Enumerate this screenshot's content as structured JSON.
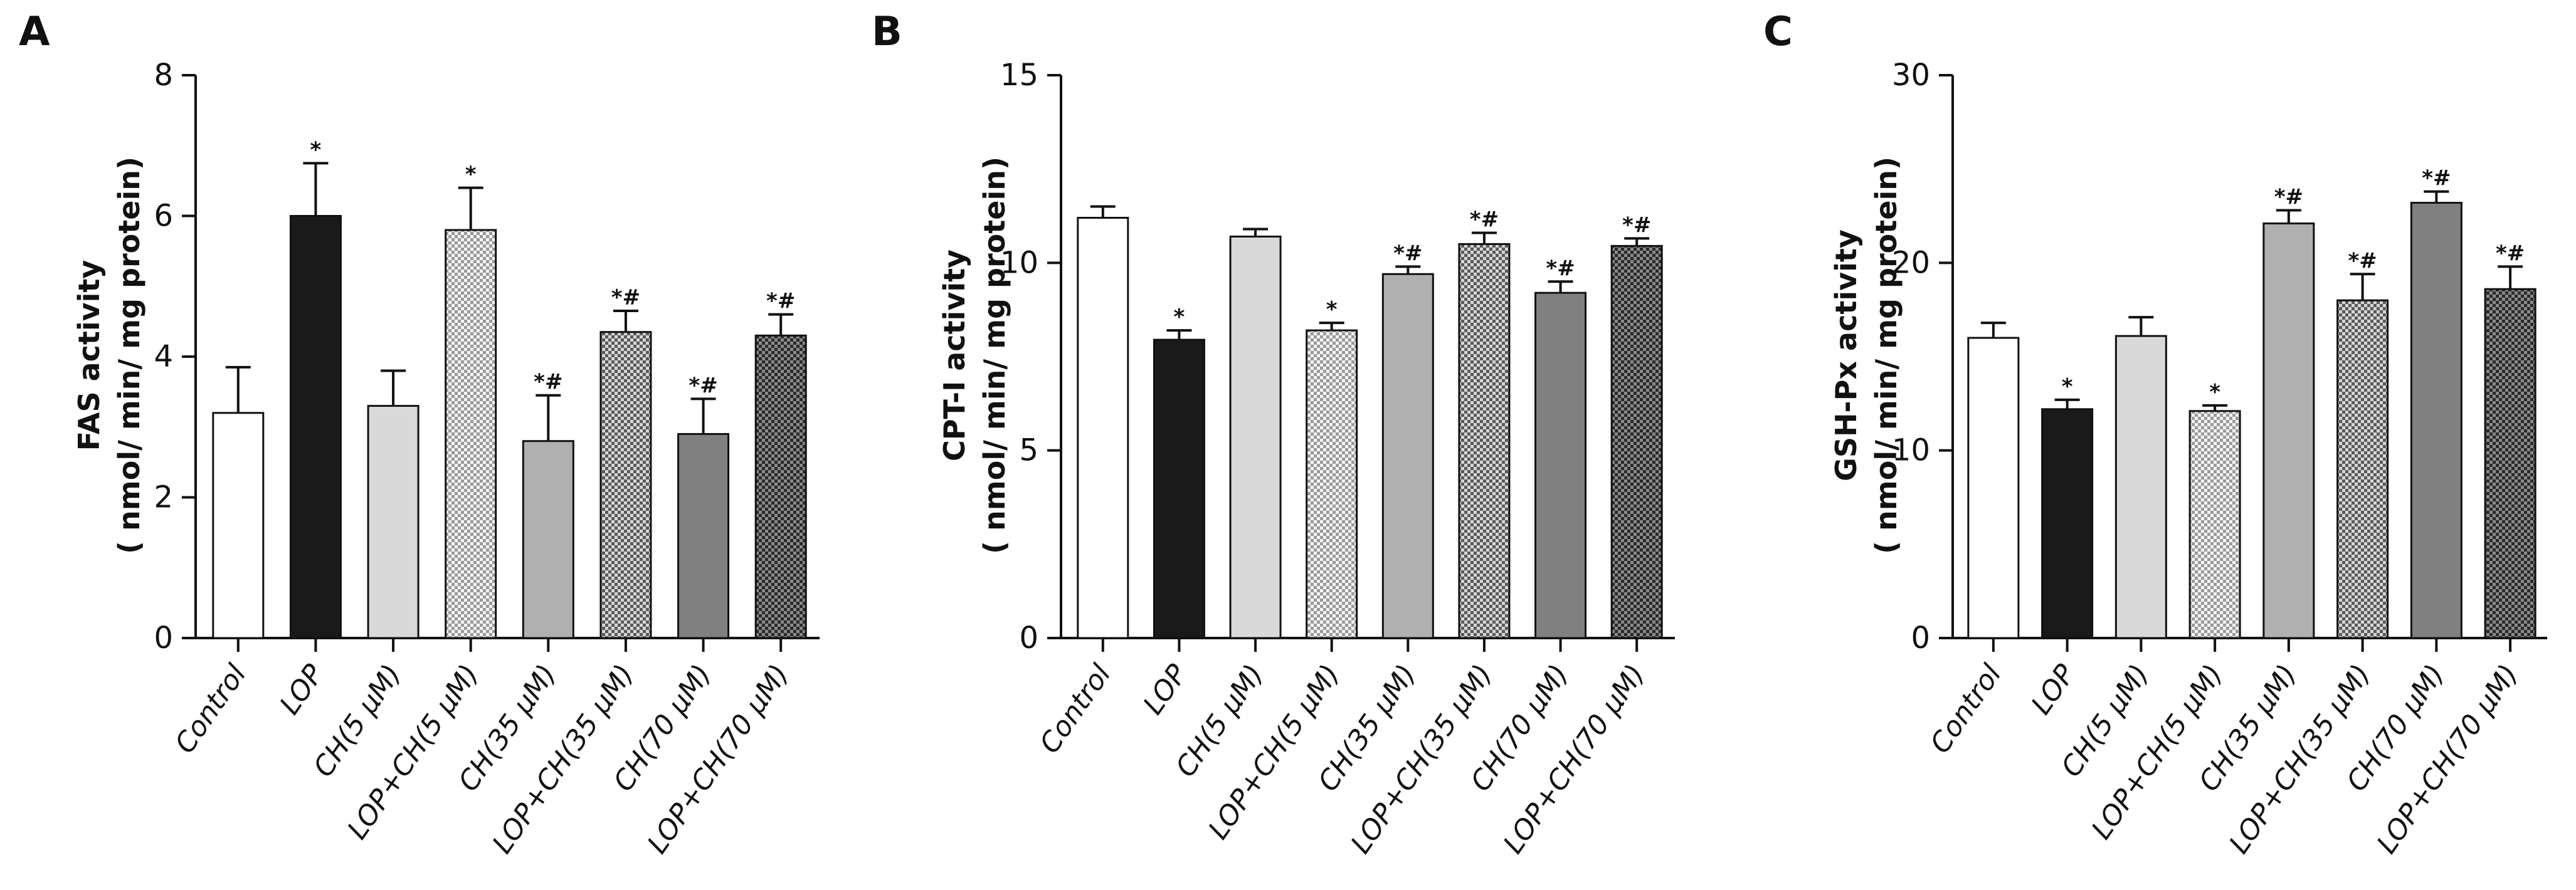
{
  "chart_data": [
    {
      "panel": "A",
      "type": "bar",
      "ylabel_line1": "FAS activity",
      "ylabel_line2": "( nmol/ min/ mg protein)",
      "ylim": [
        0,
        8
      ],
      "yticks": [
        "0",
        "2",
        "4",
        "6",
        "8"
      ],
      "categories": [
        "Control",
        "LOP",
        "CH(5 μM)",
        "LOP+CH(5 μM)",
        "CH(35 μM)",
        "LOP+CH(35 μM)",
        "CH(70 μM)",
        "LOP+CH(70 μM)"
      ],
      "values": [
        3.2,
        6.0,
        3.3,
        5.8,
        2.8,
        4.35,
        2.9,
        4.3
      ],
      "errors": [
        0.65,
        0.75,
        0.5,
        0.6,
        0.65,
        0.3,
        0.5,
        0.3
      ],
      "significance": [
        "",
        "*",
        "",
        "*",
        "*#",
        "*#",
        "*#",
        "*#"
      ]
    },
    {
      "panel": "B",
      "type": "bar",
      "ylabel_line1": "CPT-I activity",
      "ylabel_line2": "( nmol/ min/ mg protein)",
      "ylim": [
        0,
        15
      ],
      "yticks": [
        "0",
        "5",
        "10",
        "15"
      ],
      "categories": [
        "Control",
        "LOP",
        "CH(5 μM)",
        "LOP+CH(5 μM)",
        "CH(35 μM)",
        "LOP+CH(35 μM)",
        "CH(70 μM)",
        "LOP+CH(70 μM)"
      ],
      "values": [
        11.2,
        7.95,
        10.7,
        8.2,
        9.7,
        10.5,
        9.2,
        10.45
      ],
      "errors": [
        0.3,
        0.25,
        0.2,
        0.2,
        0.2,
        0.3,
        0.3,
        0.2
      ],
      "significance": [
        "",
        "*",
        "",
        "*",
        "*#",
        "*#",
        "*#",
        "*#"
      ]
    },
    {
      "panel": "C",
      "type": "bar",
      "ylabel_line1": "GSH-Px activity",
      "ylabel_line2": "( nmol/ min/ mg protein)",
      "ylim": [
        0,
        30
      ],
      "yticks": [
        "0",
        "10",
        "20",
        "30"
      ],
      "categories": [
        "Control",
        "LOP",
        "CH(5 μM)",
        "LOP+CH(5 μM)",
        "CH(35 μM)",
        "LOP+CH(35 μM)",
        "CH(70 μM)",
        "LOP+CH(70 μM)"
      ],
      "values": [
        16.0,
        12.2,
        16.1,
        12.1,
        22.1,
        18.0,
        23.2,
        18.6
      ],
      "errors": [
        0.8,
        0.5,
        1.0,
        0.3,
        0.7,
        1.4,
        0.6,
        1.2
      ],
      "significance": [
        "",
        "*",
        "",
        "*",
        "*#",
        "*#",
        "*#",
        "*#"
      ]
    }
  ],
  "bar_styles": [
    {
      "fill": "#ffffff",
      "pattern": "none"
    },
    {
      "fill": "#1a1a1a",
      "pattern": "none"
    },
    {
      "fill": "#d9d9d9",
      "pattern": "none"
    },
    {
      "fill": "#f2f2f2",
      "pattern": "checker-light"
    },
    {
      "fill": "#b0b0b0",
      "pattern": "none"
    },
    {
      "fill": "#cfcfcf",
      "pattern": "checker-medium"
    },
    {
      "fill": "#808080",
      "pattern": "none"
    },
    {
      "fill": "#808080",
      "pattern": "checker-dark"
    }
  ]
}
